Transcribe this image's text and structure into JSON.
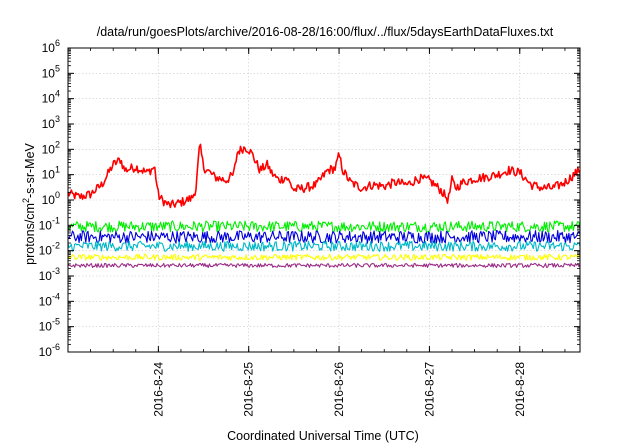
{
  "chart_data": {
    "type": "line",
    "title": "/data/run/goesPlots/archive/2016-08-28/16:00/flux/../flux/5daysEarthDataFluxes.txt",
    "xlabel": "Coordinated Universal Time (UTC)",
    "ylabel": {
      "pre": "protons/cm",
      "sup": "2",
      "post": "-s-sr-MeV"
    },
    "yscale": "log",
    "ylim": [
      1e-06,
      1000000.0
    ],
    "xlim": [
      "2016-08-23 00:00",
      "2016-08-28 16:00"
    ],
    "y_ticks": [
      {
        "value": 1e-06,
        "base": "10",
        "exp": "-6"
      },
      {
        "value": 1e-05,
        "base": "10",
        "exp": "-5"
      },
      {
        "value": 0.0001,
        "base": "10",
        "exp": "-4"
      },
      {
        "value": 0.001,
        "base": "10",
        "exp": "-3"
      },
      {
        "value": 0.01,
        "base": "10",
        "exp": "-2"
      },
      {
        "value": 0.1,
        "base": "10",
        "exp": "-1"
      },
      {
        "value": 1,
        "base": "10",
        "exp": "0"
      },
      {
        "value": 10,
        "base": "10",
        "exp": "1"
      },
      {
        "value": 100,
        "base": "10",
        "exp": "2"
      },
      {
        "value": 1000,
        "base": "10",
        "exp": "3"
      },
      {
        "value": 10000,
        "base": "10",
        "exp": "4"
      },
      {
        "value": 100000,
        "base": "10",
        "exp": "5"
      },
      {
        "value": 1000000,
        "base": "10",
        "exp": "6"
      }
    ],
    "x_ticks": [
      {
        "value": "2016-08-24 00:00",
        "label": "2016-8-24"
      },
      {
        "value": "2016-08-25 00:00",
        "label": "2016-8-25"
      },
      {
        "value": "2016-08-26 00:00",
        "label": "2016-8-26"
      },
      {
        "value": "2016-08-27 00:00",
        "label": "2016-8-27"
      },
      {
        "value": "2016-08-28 00:00",
        "label": "2016-8-28"
      }
    ],
    "grid": true,
    "legend": "none",
    "series": [
      {
        "color": "#ff0000",
        "x": [
          "2016-08-23 00:00",
          "2016-08-23 03:00",
          "2016-08-23 06:00",
          "2016-08-23 09:00",
          "2016-08-23 12:00",
          "2016-08-23 14:00",
          "2016-08-23 15:00",
          "2016-08-23 18:00",
          "2016-08-23 21:00",
          "2016-08-23 23:00",
          "2016-08-24 00:00",
          "2016-08-24 01:00",
          "2016-08-24 03:00",
          "2016-08-24 06:00",
          "2016-08-24 09:00",
          "2016-08-24 10:00",
          "2016-08-24 11:00",
          "2016-08-24 12:00",
          "2016-08-24 15:00",
          "2016-08-24 18:00",
          "2016-08-24 20:00",
          "2016-08-24 21:00",
          "2016-08-24 23:00",
          "2016-08-25 00:00",
          "2016-08-25 01:00",
          "2016-08-25 03:00",
          "2016-08-25 05:00",
          "2016-08-25 06:00",
          "2016-08-25 08:00",
          "2016-08-25 10:00",
          "2016-08-25 12:00",
          "2016-08-25 15:00",
          "2016-08-25 18:00",
          "2016-08-25 21:00",
          "2016-08-25 23:00",
          "2016-08-26 00:00",
          "2016-08-26 01:00",
          "2016-08-26 03:00",
          "2016-08-26 06:00",
          "2016-08-26 09:00",
          "2016-08-26 12:00",
          "2016-08-26 15:00",
          "2016-08-26 18:00",
          "2016-08-26 21:00",
          "2016-08-27 00:00",
          "2016-08-27 03:00",
          "2016-08-27 05:00",
          "2016-08-27 06:00",
          "2016-08-27 07:00",
          "2016-08-27 09:00",
          "2016-08-27 12:00",
          "2016-08-27 15:00",
          "2016-08-27 18:00",
          "2016-08-27 21:00",
          "2016-08-28 00:00",
          "2016-08-28 03:00",
          "2016-08-28 06:00",
          "2016-08-28 09:00",
          "2016-08-28 12:00",
          "2016-08-28 15:00",
          "2016-08-28 16:00"
        ],
        "y": [
          1.8,
          1.3,
          1.7,
          4,
          25,
          40,
          15,
          20,
          12,
          20,
          1.5,
          1.0,
          0.6,
          0.8,
          1.2,
          3,
          150,
          20,
          8,
          6,
          10,
          80,
          120,
          100,
          60,
          15,
          25,
          12,
          6,
          8,
          2.5,
          3,
          4,
          15,
          18,
          60,
          15,
          5,
          3,
          4,
          3.5,
          5,
          4,
          7,
          6,
          2.5,
          1.0,
          6,
          3,
          5,
          7,
          8,
          10,
          15,
          12,
          4,
          3,
          3,
          5,
          12,
          15
        ],
        "noise": 0.18
      },
      {
        "color": "#00ee00",
        "constant": 0.09,
        "noise": 0.22
      },
      {
        "color": "#0000dd",
        "constant": 0.035,
        "noise": 0.25
      },
      {
        "color": "#00b8c8",
        "constant": 0.015,
        "noise": 0.2
      },
      {
        "color": "#ffff00",
        "constant": 0.0055,
        "noise": 0.12
      },
      {
        "color": "#9a2a86",
        "constant": 0.0026,
        "noise": 0.08
      }
    ]
  }
}
